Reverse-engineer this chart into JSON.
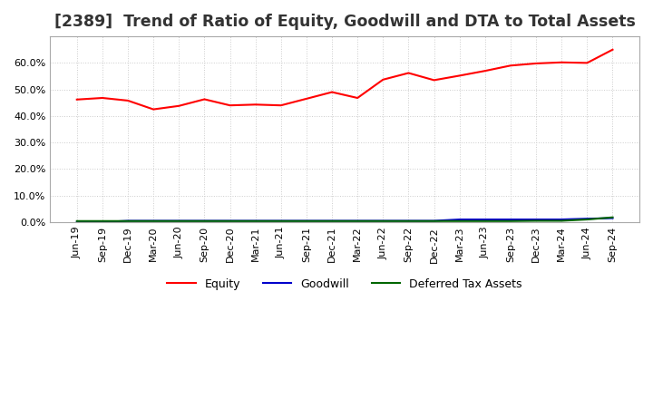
{
  "title": "[2389]  Trend of Ratio of Equity, Goodwill and DTA to Total Assets",
  "x_labels": [
    "Jun-19",
    "Sep-19",
    "Dec-19",
    "Mar-20",
    "Jun-20",
    "Sep-20",
    "Dec-20",
    "Mar-21",
    "Jun-21",
    "Sep-21",
    "Dec-21",
    "Mar-22",
    "Jun-22",
    "Sep-22",
    "Dec-22",
    "Mar-23",
    "Jun-23",
    "Sep-23",
    "Dec-23",
    "Mar-24",
    "Jun-24",
    "Sep-24"
  ],
  "equity": [
    0.462,
    0.468,
    0.458,
    0.425,
    0.438,
    0.463,
    0.44,
    0.443,
    0.44,
    0.465,
    0.49,
    0.468,
    0.537,
    0.562,
    0.535,
    0.552,
    0.57,
    0.59,
    0.598,
    0.602,
    0.6,
    0.65
  ],
  "goodwill": [
    0.0,
    0.0,
    0.005,
    0.005,
    0.005,
    0.005,
    0.005,
    0.005,
    0.005,
    0.005,
    0.005,
    0.005,
    0.005,
    0.005,
    0.005,
    0.01,
    0.01,
    0.01,
    0.01,
    0.01,
    0.013,
    0.015
  ],
  "dta": [
    0.004,
    0.004,
    0.004,
    0.004,
    0.004,
    0.004,
    0.004,
    0.004,
    0.004,
    0.004,
    0.004,
    0.004,
    0.004,
    0.004,
    0.004,
    0.004,
    0.004,
    0.004,
    0.005,
    0.005,
    0.01,
    0.018
  ],
  "equity_color": "#ff0000",
  "goodwill_color": "#0000cc",
  "dta_color": "#006600",
  "ylim": [
    0.0,
    0.7
  ],
  "yticks": [
    0.0,
    0.1,
    0.2,
    0.3,
    0.4,
    0.5,
    0.6
  ],
  "grid_color": "#cccccc",
  "background_color": "#ffffff",
  "title_fontsize": 12.5,
  "tick_fontsize": 8,
  "legend_fontsize": 9
}
